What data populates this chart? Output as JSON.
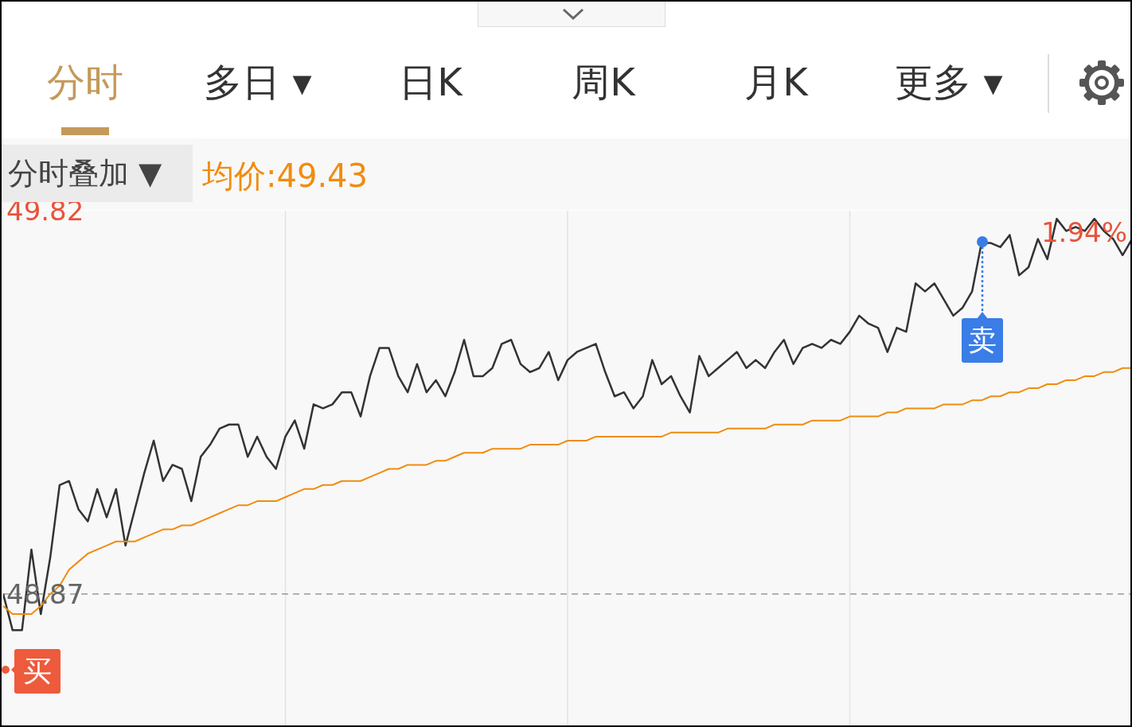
{
  "chart_data": {
    "type": "line",
    "annotations": [
      "分时",
      "多日 ▾",
      "日K",
      "周K",
      "月K",
      "更多 ▾",
      "分时叠加 ▼",
      "买",
      "卖",
      "1.94%"
    ],
    "categories": [
      null,
      null,
      null,
      null,
      null,
      null,
      null,
      null,
      null,
      null,
      null,
      null,
      null,
      null,
      null,
      null,
      null,
      null,
      null,
      null,
      null,
      null,
      null,
      null,
      null,
      null,
      null,
      null,
      null,
      null,
      null,
      null,
      null,
      null,
      null,
      null,
      null,
      null,
      null,
      null,
      null,
      null,
      null,
      null,
      null,
      null,
      null,
      null,
      null,
      null,
      null,
      null,
      null,
      null,
      null,
      null,
      null,
      null,
      null,
      null,
      null,
      null,
      null,
      null,
      null,
      null,
      null,
      null,
      null,
      null,
      null,
      null,
      null,
      null,
      null,
      null,
      null,
      null,
      null,
      null,
      null,
      null,
      null,
      null,
      null,
      null,
      null,
      null,
      null,
      null,
      null,
      null,
      null,
      null,
      null,
      null,
      null,
      null,
      null,
      null,
      null,
      null,
      null,
      null,
      null,
      null,
      null,
      null,
      null,
      null,
      null,
      null,
      null,
      null,
      null,
      null,
      null,
      null,
      null,
      null,
      null
    ],
    "series": [
      {
        "color": "#333333",
        "values": [
          48.87,
          48.78,
          48.78,
          48.98,
          48.82,
          48.96,
          49.14,
          49.15,
          49.08,
          49.05,
          49.13,
          49.06,
          49.13,
          48.99,
          49.08,
          49.17,
          49.25,
          49.15,
          49.19,
          49.18,
          49.1,
          49.21,
          49.24,
          49.28,
          49.29,
          49.29,
          49.21,
          49.26,
          49.21,
          49.18,
          49.26,
          49.3,
          49.23,
          49.34,
          49.33,
          49.34,
          49.37,
          49.37,
          49.31,
          49.41,
          49.48,
          49.48,
          49.41,
          49.37,
          49.44,
          49.37,
          49.4,
          49.36,
          49.42,
          49.5,
          49.41,
          49.41,
          49.43,
          49.49,
          49.5,
          49.44,
          49.42,
          49.43,
          49.47,
          49.4,
          49.45,
          49.47,
          49.48,
          49.49,
          49.42,
          49.36,
          49.37,
          49.33,
          49.36,
          49.45,
          49.39,
          49.41,
          49.36,
          49.32,
          49.46,
          49.41,
          49.43,
          49.45,
          49.47,
          49.43,
          49.45,
          49.43,
          49.47,
          49.5,
          49.44,
          49.48,
          49.49,
          49.48,
          49.5,
          49.49,
          49.52,
          49.56,
          49.54,
          49.53,
          49.47,
          49.53,
          49.52,
          49.64,
          49.62,
          49.64,
          49.6,
          49.56,
          49.58,
          49.62,
          49.74,
          49.74,
          49.73,
          49.76,
          49.66,
          49.68,
          49.75,
          49.7,
          49.8,
          49.77,
          49.78,
          49.77,
          49.8,
          49.77,
          49.75,
          49.71,
          49.75
        ]
      },
      {
        "name": "均价:49.43",
        "color": "#f08c10",
        "values": [
          48.84,
          48.82,
          48.82,
          48.82,
          48.84,
          48.87,
          48.89,
          48.93,
          48.95,
          48.97,
          48.98,
          48.99,
          49.0,
          49.0,
          49.0,
          49.01,
          49.02,
          49.03,
          49.03,
          49.04,
          49.04,
          49.05,
          49.06,
          49.07,
          49.08,
          49.09,
          49.09,
          49.1,
          49.1,
          49.1,
          49.11,
          49.12,
          49.13,
          49.13,
          49.14,
          49.14,
          49.15,
          49.15,
          49.15,
          49.16,
          49.17,
          49.18,
          49.18,
          49.19,
          49.19,
          49.19,
          49.2,
          49.2,
          49.21,
          49.22,
          49.22,
          49.22,
          49.23,
          49.23,
          49.23,
          49.23,
          49.24,
          49.24,
          49.24,
          49.24,
          49.25,
          49.25,
          49.25,
          49.26,
          49.26,
          49.26,
          49.26,
          49.26,
          49.26,
          49.26,
          49.26,
          49.27,
          49.27,
          49.27,
          49.27,
          49.27,
          49.27,
          49.28,
          49.28,
          49.28,
          49.28,
          49.28,
          49.29,
          49.29,
          49.29,
          49.29,
          49.3,
          49.3,
          49.3,
          49.3,
          49.31,
          49.31,
          49.31,
          49.31,
          49.32,
          49.32,
          49.33,
          49.33,
          49.33,
          49.33,
          49.34,
          49.34,
          49.34,
          49.35,
          49.35,
          49.36,
          49.36,
          49.37,
          49.37,
          49.38,
          49.38,
          49.39,
          49.39,
          49.4,
          49.4,
          49.41,
          49.41,
          49.42,
          49.42,
          49.43,
          49.43
        ]
      }
    ],
    "ylim": [
      48.54,
      49.82
    ],
    "yticks": [
      49.82,
      48.87
    ],
    "ref_lines": [
      {
        "axis": "y",
        "value": 48.87,
        "color": "#999999",
        "line_style": "dashed"
      }
    ],
    "grid": "x",
    "tick_labels": "y",
    "marker": "none",
    "line_style": "solid"
  }
}
